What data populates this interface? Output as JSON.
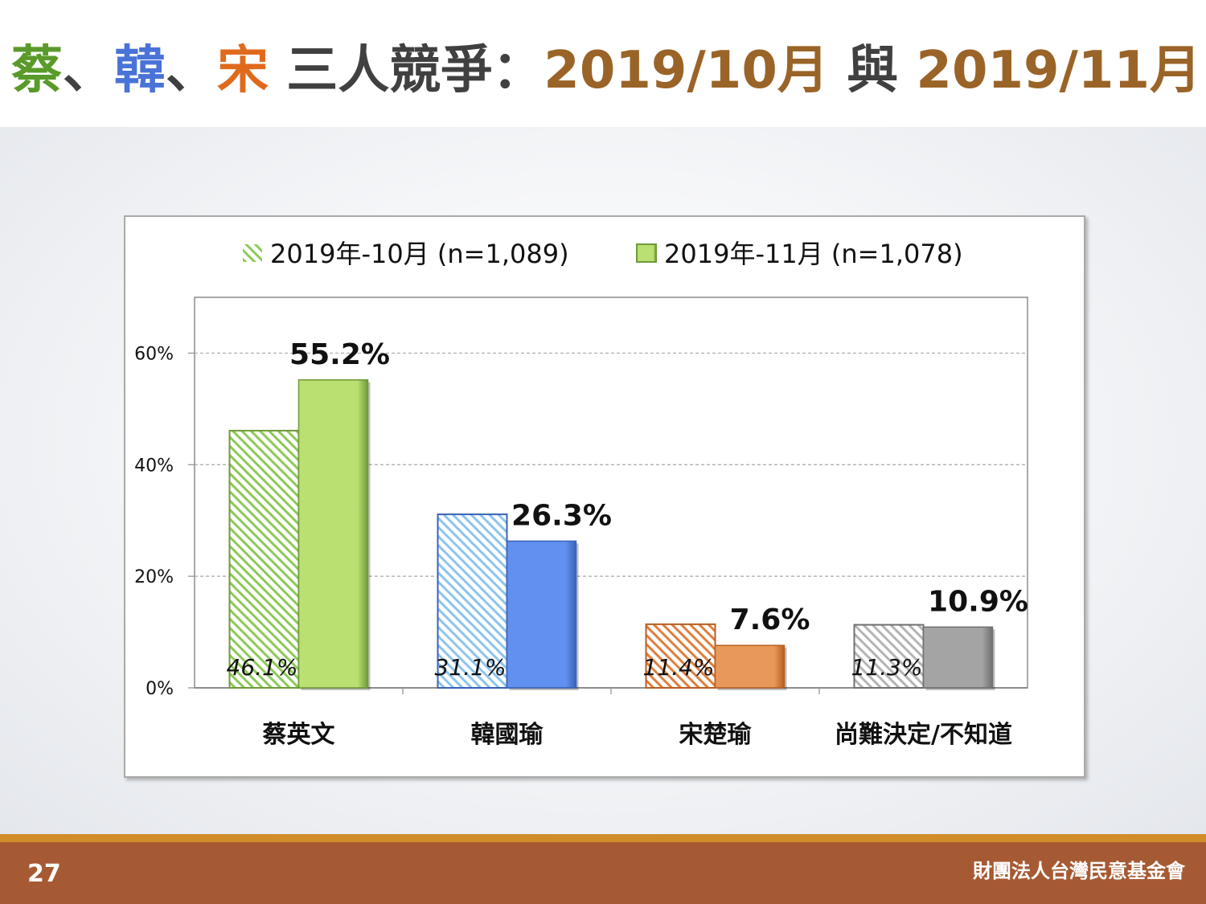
{
  "slide": {
    "title": {
      "parts": [
        {
          "text": "蔡",
          "color": "#5a9a2a"
        },
        {
          "text": "、",
          "color": "#404040"
        },
        {
          "text": "韓",
          "color": "#4a73d8"
        },
        {
          "text": "、",
          "color": "#404040"
        },
        {
          "text": "宋",
          "color": "#e06a1c"
        },
        {
          "text": " 三人競爭：",
          "color": "#404040"
        },
        {
          "text": "2019/10月 ",
          "color": "#9a6428"
        },
        {
          "text": "與 ",
          "color": "#404040"
        },
        {
          "text": "2019/11月",
          "color": "#9a6428"
        }
      ]
    },
    "page_number": "27",
    "organization": "財團法人台灣民意基金會"
  },
  "chart_data": {
    "type": "bar",
    "categories": [
      "蔡英文",
      "韓國瑜",
      "宋楚瑜",
      "尚難決定/不知道"
    ],
    "series": [
      {
        "name": "2019年-10月  (n=1,089)",
        "pattern": "hatched",
        "values": [
          46.1,
          31.1,
          11.4,
          11.3
        ],
        "data_labels": [
          "46.1%",
          "31.1%",
          "11.4%",
          "11.3%"
        ]
      },
      {
        "name": "2019年-11月  (n=1,078)",
        "pattern": "solid",
        "values": [
          55.2,
          26.3,
          7.6,
          10.9
        ],
        "data_labels": [
          "55.2%",
          "26.3%",
          "7.6%",
          "10.9%"
        ]
      }
    ],
    "category_colors": [
      {
        "solid": "#b9e070",
        "hatch": "#8dc957",
        "border": "#6f9a3a"
      },
      {
        "solid": "#6090f0",
        "hatch": "#8cc4ee",
        "border": "#3a62b8"
      },
      {
        "solid": "#e8985a",
        "hatch": "#e07e3c",
        "border": "#b85f22"
      },
      {
        "solid": "#a4a4a4",
        "hatch": "#b4b4b4",
        "border": "#707070"
      }
    ],
    "yaxis": {
      "ticks": [
        0,
        20,
        40,
        60
      ],
      "tick_labels": [
        "0%",
        "20%",
        "40%",
        "60%"
      ],
      "ylim": [
        0,
        70
      ]
    },
    "legend_placement": "top-center",
    "grid": "dashed horizontal"
  }
}
